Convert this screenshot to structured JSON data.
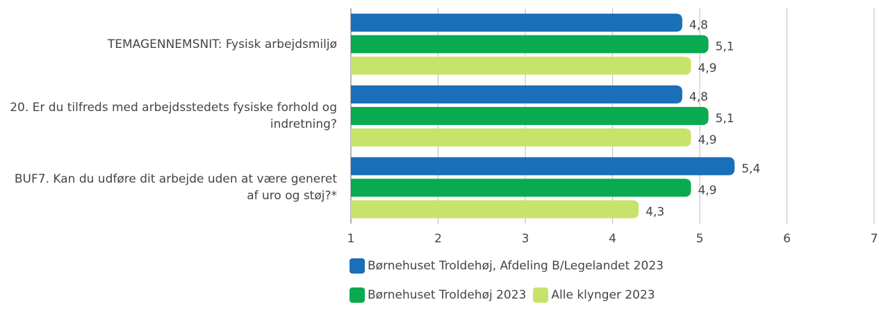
{
  "chart_data": {
    "type": "bar",
    "orientation": "horizontal",
    "categories": [
      "TEMAGENNEMSNIT: Fysisk arbejdsmiljø",
      "20. Er du tilfreds med arbejdsstedets fysiske forhold og indretning?",
      "BUF7. Kan du udføre dit arbejde uden at være generet af uro og støj?*"
    ],
    "series": [
      {
        "name": "Børnehuset Troldehøj, Afdeling B/Legelandet 2023",
        "color": "#1a6fb9",
        "values": [
          4.8,
          4.8,
          5.4
        ],
        "value_labels": [
          "4,8",
          "4,8",
          "5,4"
        ]
      },
      {
        "name": "Børnehuset Troldehøj 2023",
        "color": "#0aaa50",
        "values": [
          5.1,
          5.1,
          4.9
        ],
        "value_labels": [
          "5,1",
          "5,1",
          "4,9"
        ]
      },
      {
        "name": "Alle klynger 2023",
        "color": "#c8e36c",
        "values": [
          4.9,
          4.9,
          4.3
        ],
        "value_labels": [
          "4,9",
          "4,9",
          "4,3"
        ]
      }
    ],
    "xlim": [
      1,
      7
    ],
    "xticks": [
      1,
      2,
      3,
      4,
      5,
      6,
      7
    ],
    "grid": true,
    "legend": "bottom"
  }
}
